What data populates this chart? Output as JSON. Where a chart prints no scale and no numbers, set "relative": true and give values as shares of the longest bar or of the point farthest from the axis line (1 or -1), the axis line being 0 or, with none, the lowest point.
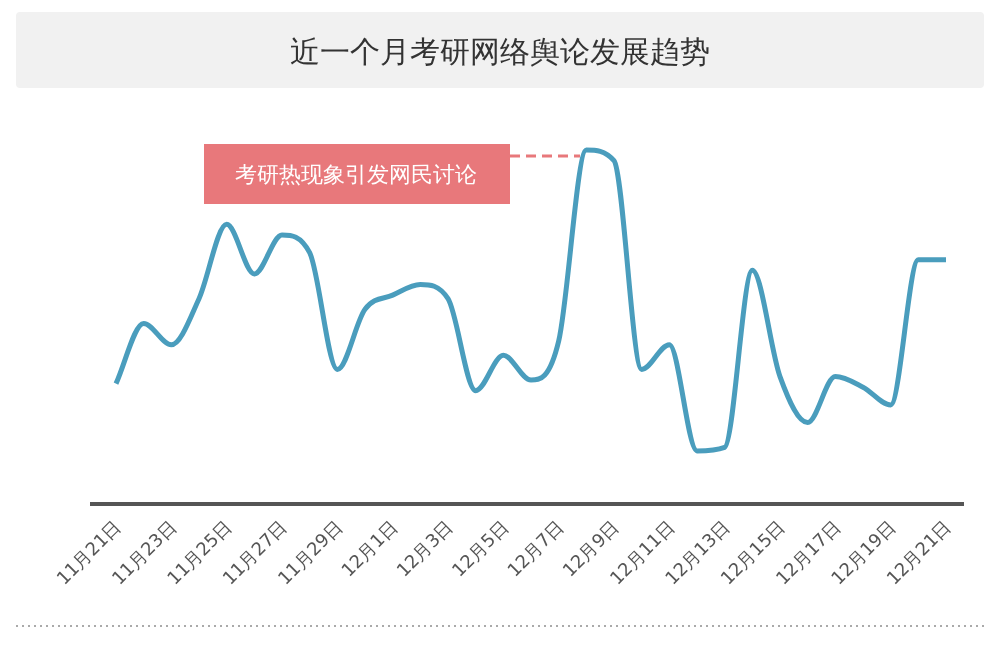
{
  "chart_data": {
    "type": "line",
    "title": "近一个月考研网络舆论发展趋势",
    "relative": true,
    "categories": [
      "11月21日",
      null,
      "11月23日",
      null,
      "11月25日",
      null,
      "11月27日",
      null,
      "11月29日",
      null,
      "12月1日",
      null,
      "12月3日",
      null,
      "12月5日",
      null,
      "12月7日",
      null,
      "12月9日",
      null,
      "12月11日",
      null,
      "12月13日",
      null,
      "12月15日",
      null,
      "12月17日",
      null,
      "12月19日",
      null,
      "12月21日"
    ],
    "series": [
      {
        "color": "#4a9dbd",
        "values": [
          0.34,
          0.51,
          0.45,
          0.58,
          0.79,
          0.65,
          0.76,
          0.71,
          0.38,
          0.55,
          0.59,
          0.62,
          0.58,
          0.32,
          0.42,
          0.35,
          0.46,
          1.0,
          0.97,
          0.38,
          0.45,
          0.15,
          0.16,
          0.66,
          0.36,
          0.23,
          0.36,
          0.33,
          0.28,
          0.69,
          0.69
        ]
      }
    ],
    "annotations": [
      "考研热现象引发网民讨论"
    ],
    "grid": false,
    "marker": "none",
    "line_style": "solid"
  }
}
